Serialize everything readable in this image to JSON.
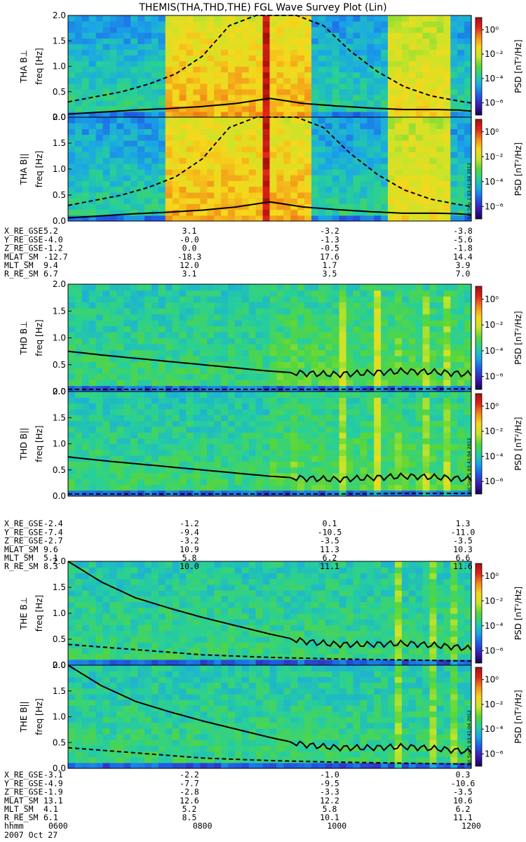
{
  "title": "THEMIS(THA,THD,THE) FGL Wave Survey Plot (Lin)",
  "colors": {
    "spec_stops": [
      "#1a005a",
      "#3c1bb0",
      "#1f5be8",
      "#1aa8e6",
      "#27cf9a",
      "#56d63b",
      "#c9e42a",
      "#f5d81c",
      "#f28b18",
      "#e1231b",
      "#a60f10"
    ],
    "line": "#000000"
  },
  "colorbar": {
    "label": "PSD [nT²/Hz]",
    "ticks": [
      "10⁰",
      "10⁻²",
      "10⁻⁴",
      "10⁻⁶"
    ],
    "tick_exponents": [
      0,
      -2,
      -4,
      -6
    ],
    "range_exponents": [
      -7,
      1
    ]
  },
  "stamp": "Sat Sep 1 03:41:04 2012",
  "time_labels": [
    "0600",
    "0800",
    "1000",
    "1200"
  ],
  "bottom_labels": {
    "hhmm": "hhmm",
    "date": "2007 Oct 27"
  },
  "panels": [
    {
      "probe": "THA",
      "comp": "B⊥",
      "ylabel": "freq [Hz]",
      "yticks": [
        "2.0",
        "1.5",
        "1.0",
        "0.5",
        "0.0"
      ]
    },
    {
      "probe": "THA",
      "comp": "B||",
      "ylabel": "freq [Hz]",
      "yticks": [
        "2.0",
        "1.5",
        "1.0",
        "0.5",
        "0.0"
      ]
    },
    {
      "probe": "THD",
      "comp": "B⊥",
      "ylabel": "freq [Hz]",
      "yticks": [
        "2.0",
        "1.5",
        "1.0",
        "0.5",
        "0.0"
      ]
    },
    {
      "probe": "THD",
      "comp": "B||",
      "ylabel": "freq [Hz]",
      "yticks": [
        "2.0",
        "1.5",
        "1.0",
        "0.5",
        "0.0"
      ]
    },
    {
      "probe": "THE",
      "comp": "B⊥",
      "ylabel": "freq [Hz]",
      "yticks": [
        "2.0",
        "1.5",
        "1.0",
        "0.5",
        "0.0"
      ]
    },
    {
      "probe": "THE",
      "comp": "B||",
      "ylabel": "freq [Hz]",
      "yticks": [
        "2.0",
        "1.5",
        "1.0",
        "0.5",
        "0.0"
      ]
    }
  ],
  "ephemeris": [
    {
      "probe": "THA",
      "rows": [
        {
          "label": "X_RE_GSE",
          "values": [
            "5.2",
            "3.1",
            "-3.2",
            "-3.8"
          ]
        },
        {
          "label": "Y_RE_GSE",
          "values": [
            "-4.0",
            "-0.0",
            "-1.3",
            "-5.6"
          ]
        },
        {
          "label": "Z_RE_GSE",
          "values": [
            "-1.2",
            "0.0",
            "-0.5",
            "-1.8"
          ]
        },
        {
          "label": "MLAT_SM",
          "values": [
            "-12.7",
            "-18.3",
            "17.6",
            "14.4"
          ]
        },
        {
          "label": "MLT_SM",
          "values": [
            "9.4",
            "12.0",
            "1.7",
            "3.9"
          ]
        },
        {
          "label": "R_RE_SM",
          "values": [
            "6.7",
            "3.1",
            "3.5",
            "7.0"
          ]
        }
      ]
    },
    {
      "probe": "THD",
      "rows": [
        {
          "label": "X_RE_GSE",
          "values": [
            "-2.4",
            "-1.2",
            "0.1",
            "1.3"
          ]
        },
        {
          "label": "Y_RE_GSE",
          "values": [
            "-7.4",
            "-9.4",
            "-10.5",
            "-11.0"
          ]
        },
        {
          "label": "Z_RE_GSE",
          "values": [
            "-2.7",
            "-3.2",
            "-3.5",
            "-3.5"
          ]
        },
        {
          "label": "MLAT_SM",
          "values": [
            "9.6",
            "10.9",
            "11.3",
            "10.3"
          ]
        },
        {
          "label": "MLT_SM",
          "values": [
            "5.1",
            "5.8",
            "6.2",
            "6.6"
          ]
        },
        {
          "label": "R_RE_SM",
          "values": [
            "8.3",
            "10.0",
            "11.1",
            "11.6"
          ]
        }
      ]
    },
    {
      "probe": "THE",
      "rows": [
        {
          "label": "X_RE_GSE",
          "values": [
            "-3.1",
            "-2.2",
            "-1.0",
            "0.3"
          ]
        },
        {
          "label": "Y_RE_GSE",
          "values": [
            "-4.9",
            "-7.7",
            "-9.5",
            "-10.6"
          ]
        },
        {
          "label": "Z_RE_GSE",
          "values": [
            "-1.9",
            "-2.8",
            "-3.3",
            "-3.5"
          ]
        },
        {
          "label": "MLAT_SM",
          "values": [
            "13.1",
            "12.6",
            "12.2",
            "10.6"
          ]
        },
        {
          "label": "MLT_SM",
          "values": [
            "4.1",
            "5.2",
            "5.8",
            "6.2"
          ]
        },
        {
          "label": "R_RE_SM",
          "values": [
            "6.1",
            "8.5",
            "10.1",
            "11.1"
          ]
        }
      ]
    }
  ],
  "chart_data": {
    "type": "heatmap",
    "title": "THEMIS(THA,THD,THE) FGL Wave Survey Plot (Lin)",
    "xlabel": "hhmm",
    "x_ticks": [
      "0600",
      "0800",
      "1000",
      "1200"
    ],
    "xlim_hours": [
      6.0,
      12.0
    ],
    "ylim_hz": [
      0.0,
      2.0
    ],
    "ylabel": "freq [Hz]",
    "zlabel": "PSD [nT²/Hz]",
    "zlim_log10": [
      -7,
      1
    ],
    "series": [
      {
        "name": "THA B⊥"
      },
      {
        "name": "THA B||"
      },
      {
        "name": "THD B⊥"
      },
      {
        "name": "THD B||"
      },
      {
        "name": "THE B⊥"
      },
      {
        "name": "THE B||"
      }
    ],
    "overlays": {
      "THA": {
        "solid": {
          "t": [
            6.0,
            6.25,
            6.5,
            7.0,
            7.5,
            8.0,
            8.5,
            9.0,
            9.5,
            10.0,
            10.5,
            11.0,
            11.5,
            11.8,
            12.0
          ],
          "f": [
            0.06,
            0.08,
            0.1,
            0.14,
            0.17,
            0.21,
            0.27,
            0.37,
            0.27,
            0.22,
            0.18,
            0.15,
            0.15,
            0.14,
            0.12
          ]
        },
        "dashed": {
          "t": [
            6.0,
            6.4,
            6.8,
            7.2,
            7.6,
            8.0,
            8.4,
            8.8,
            9.4,
            9.8,
            10.2,
            10.6,
            11.0,
            11.4,
            11.8,
            12.0
          ],
          "f": [
            0.3,
            0.4,
            0.5,
            0.65,
            0.85,
            1.2,
            1.8,
            2.0,
            2.0,
            1.8,
            1.3,
            0.9,
            0.6,
            0.42,
            0.32,
            0.28
          ]
        }
      },
      "THD": {
        "solid": {
          "t": [
            6.0,
            6.5,
            7.0,
            7.5,
            8.0,
            8.5,
            9.0,
            9.5,
            10.0,
            10.5,
            11.0,
            11.5,
            12.0
          ],
          "f": [
            0.75,
            0.68,
            0.62,
            0.56,
            0.5,
            0.44,
            0.38,
            0.34,
            0.32,
            0.35,
            0.38,
            0.36,
            0.32
          ]
        },
        "dashed": {
          "t": [
            6.0,
            7.0,
            8.0,
            9.0,
            10.0,
            11.0,
            12.0
          ],
          "f": [
            0.04,
            0.04,
            0.04,
            0.04,
            0.04,
            0.05,
            0.05
          ]
        }
      },
      "THE": {
        "solid": {
          "t": [
            6.0,
            6.5,
            7.0,
            7.5,
            8.0,
            8.5,
            9.0,
            9.5,
            10.0,
            10.5,
            11.0,
            11.5,
            12.0
          ],
          "f": [
            2.0,
            1.6,
            1.3,
            1.1,
            0.92,
            0.76,
            0.6,
            0.46,
            0.4,
            0.4,
            0.42,
            0.38,
            0.32
          ]
        },
        "dashed": {
          "t": [
            6.0,
            7.0,
            8.0,
            9.0,
            10.0,
            11.0,
            12.0
          ],
          "f": [
            0.4,
            0.3,
            0.2,
            0.15,
            0.12,
            0.1,
            0.08
          ]
        }
      }
    }
  }
}
